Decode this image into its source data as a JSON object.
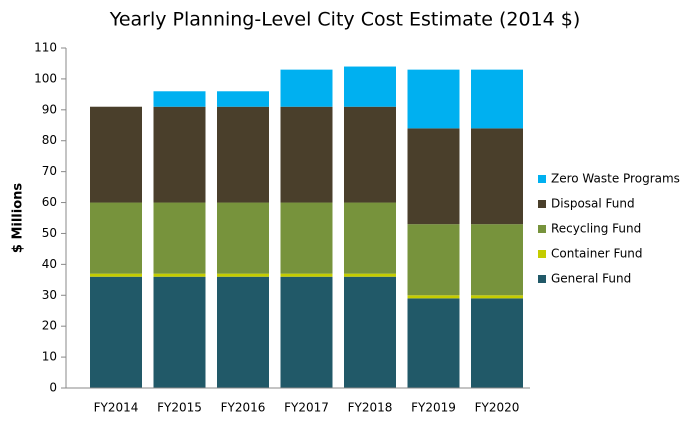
{
  "chart_data": {
    "type": "stacked_bar",
    "title": "Yearly Planning-Level City Cost Estimate (2014 $)",
    "y_label": "$ Millions",
    "categories": [
      "FY2014",
      "FY2015",
      "FY2016",
      "FY2017",
      "FY2018",
      "FY2019",
      "FY2020"
    ],
    "series": [
      {
        "name": "General Fund",
        "color": "#215968",
        "values": [
          36,
          36,
          36,
          36,
          36,
          29,
          29
        ]
      },
      {
        "name": "Container Fund",
        "color": "#c4cc00",
        "values": [
          1,
          1,
          1,
          1,
          1,
          1,
          1
        ]
      },
      {
        "name": "Recycling Fund",
        "color": "#77933c",
        "values": [
          23,
          23,
          23,
          23,
          23,
          23,
          23
        ]
      },
      {
        "name": "Disposal Fund",
        "color": "#4a3f2b",
        "values": [
          31,
          31,
          31,
          31,
          31,
          31,
          31
        ]
      },
      {
        "name": "Zero Waste Programs",
        "color": "#00b0f0",
        "values": [
          0,
          5,
          5,
          12,
          13,
          19,
          19
        ]
      }
    ],
    "ylim": [
      0,
      110
    ],
    "yticks": [
      0,
      10,
      20,
      30,
      40,
      50,
      60,
      70,
      80,
      90,
      100,
      110
    ],
    "grid": false,
    "legend": "right"
  }
}
